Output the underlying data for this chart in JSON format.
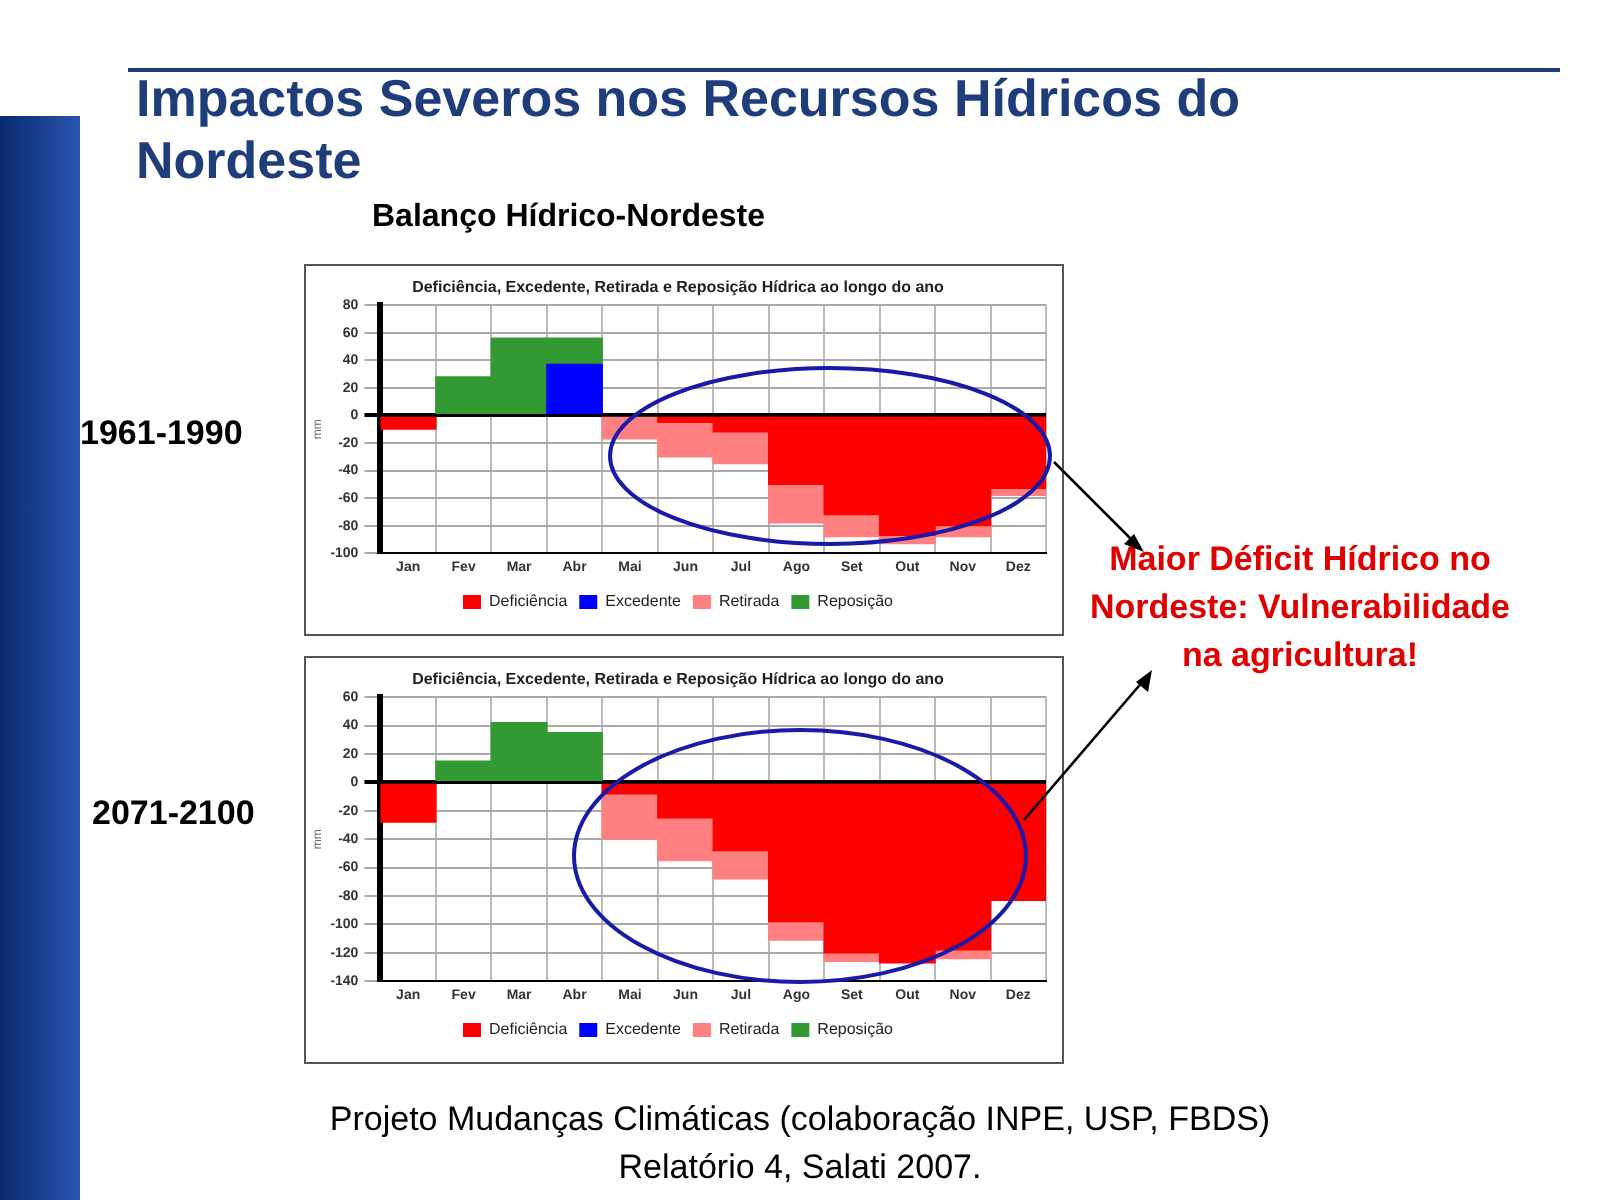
{
  "chart_data": [
    {
      "type": "bar",
      "title": "Deficiência, Excedente, Retirada e Reposição Hídrica ao longo do ano",
      "subtitle": "1961-1990",
      "ylabel": "mm",
      "annotations": [
        "Impactos Severos nos Recursos Hídricos do Nordeste",
        "Balanço Hídrico-Nordeste",
        "Maior Déficit Hídrico no Nordeste: Vulnerabilidade na agricultura!"
      ],
      "categories": [
        "Jan",
        "Fev",
        "Mar",
        "Abr",
        "Mai",
        "Jun",
        "Jul",
        "Ago",
        "Set",
        "Out",
        "Nov",
        "Dez"
      ],
      "stacked": true,
      "ylim": [
        -100,
        80
      ],
      "yticks": [
        -100,
        -80,
        -60,
        -40,
        -20,
        0,
        20,
        40,
        60,
        80
      ],
      "grid": true,
      "legend": "bottom",
      "series": [
        {
          "name": "Deficiência",
          "color": "#ff0000",
          "values": [
            -10,
            null,
            null,
            null,
            null,
            -5,
            -12,
            -50,
            -72,
            -87,
            -80,
            -53
          ]
        },
        {
          "name": "Excedente",
          "color": "#0000ff",
          "values": [
            null,
            null,
            null,
            37,
            null,
            null,
            null,
            null,
            null,
            null,
            null,
            null
          ]
        },
        {
          "name": "Retirada",
          "color": "#ff8080",
          "values": [
            null,
            null,
            null,
            null,
            -17,
            -25,
            -23,
            -28,
            -16,
            -6,
            -8,
            -5
          ]
        },
        {
          "name": "Reposição",
          "color": "#339933",
          "values": [
            null,
            28,
            56,
            19,
            null,
            null,
            null,
            null,
            null,
            null,
            null,
            null
          ]
        }
      ]
    },
    {
      "type": "bar",
      "title": "Deficiência, Excedente, Retirada e Reposição Hídrica ao longo do ano",
      "subtitle": "2071-2100",
      "ylabel": "mm",
      "annotations": [
        "Projeto Mudanças Climáticas (colaboração INPE, USP, FBDS)\nRelatório 4, Salati 2007."
      ],
      "categories": [
        "Jan",
        "Fev",
        "Mar",
        "Abr",
        "Mai",
        "Jun",
        "Jul",
        "Ago",
        "Set",
        "Out",
        "Nov",
        "Dez"
      ],
      "stacked": true,
      "ylim": [
        -140,
        60
      ],
      "yticks": [
        -140,
        -120,
        -100,
        -80,
        -60,
        -40,
        -20,
        0,
        20,
        40,
        60
      ],
      "grid": true,
      "legend": "bottom",
      "series": [
        {
          "name": "Deficiência",
          "color": "#ff0000",
          "values": [
            -28,
            null,
            null,
            null,
            -8,
            -25,
            -48,
            -98,
            -120,
            -127,
            -118,
            -83
          ]
        },
        {
          "name": "Excedente",
          "color": "#0000ff",
          "values": [
            null,
            null,
            null,
            null,
            null,
            null,
            null,
            null,
            null,
            null,
            null,
            null
          ]
        },
        {
          "name": "Retirada",
          "color": "#ff8080",
          "values": [
            null,
            null,
            null,
            null,
            -32,
            -30,
            -20,
            -13,
            -6,
            null,
            -6,
            null
          ]
        },
        {
          "name": "Reposição",
          "color": "#339933",
          "values": [
            null,
            15,
            42,
            35,
            null,
            null,
            null,
            null,
            null,
            null,
            null,
            null
          ]
        }
      ]
    }
  ]
}
